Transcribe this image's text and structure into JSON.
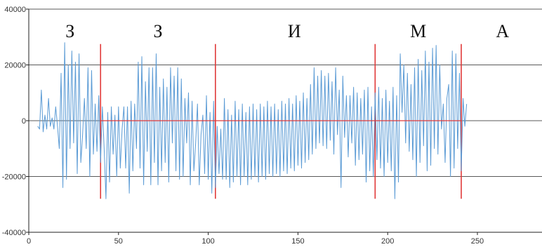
{
  "chart_data": {
    "type": "line",
    "xlim": [
      0,
      286
    ],
    "ylim": [
      -40000,
      40000
    ],
    "xticks": [
      0,
      50,
      100,
      150,
      200,
      250
    ],
    "yticks": [
      -40000,
      -20000,
      0,
      20000,
      40000
    ],
    "xtick_labels": [
      "0",
      "50",
      "100",
      "150",
      "200",
      "250"
    ],
    "ytick_labels": [
      "-40000",
      "-20000",
      "0",
      "20000",
      "40000"
    ],
    "grid": "horizontal",
    "series": [
      {
        "color": "#5b9bd5",
        "x_start": 5,
        "values": [
          -2000,
          -3000,
          11000,
          -4000,
          2000,
          -3000,
          8000,
          -2000,
          1000,
          -3000,
          5000,
          -2000,
          -10000,
          17000,
          -24000,
          28000,
          -21000,
          20000,
          -10000,
          25000,
          -8000,
          21000,
          -19000,
          24000,
          -15000,
          -5000,
          8000,
          -10000,
          19000,
          -20000,
          18000,
          -12000,
          6000,
          -11000,
          9000,
          -15000,
          5000,
          -10000,
          -28000,
          3000,
          -22000,
          5000,
          -12000,
          2000,
          -20000,
          5000,
          -17000,
          -3000,
          5000,
          -17000,
          5000,
          -26000,
          7000,
          -18000,
          6000,
          -10000,
          21000,
          -17000,
          23000,
          -23000,
          14000,
          -11000,
          19000,
          -23000,
          19000,
          -15000,
          24000,
          -23000,
          12000,
          -18000,
          15000,
          -15000,
          12000,
          -22000,
          19000,
          -8000,
          16000,
          -18000,
          19000,
          -21000,
          15000,
          -20000,
          8000,
          -8000,
          10000,
          -23000,
          7000,
          -18000,
          -8000,
          6000,
          -23000,
          -5000,
          2000,
          -19000,
          9000,
          -21000,
          3000,
          -26000,
          7000,
          -24000,
          -2000,
          -19000,
          -3000,
          -21000,
          8000,
          -21000,
          4000,
          -24000,
          2000,
          -22000,
          7000,
          -20000,
          4000,
          -23000,
          6000,
          -20000,
          3000,
          -23000,
          5000,
          -21000,
          6000,
          -20000,
          4000,
          -22000,
          6000,
          -20000,
          5000,
          -21000,
          7000,
          -19000,
          5000,
          -20000,
          6000,
          -19000,
          4000,
          -20000,
          7000,
          -18000,
          6000,
          -19000,
          8000,
          -17000,
          6000,
          -18000,
          9000,
          -16000,
          7000,
          -17000,
          10000,
          -15000,
          8000,
          -14000,
          13000,
          -12000,
          19000,
          -10000,
          16000,
          -8000,
          18000,
          -9000,
          16000,
          -10000,
          17000,
          -7000,
          14000,
          -12000,
          19000,
          -5000,
          11000,
          -24000,
          16000,
          -6000,
          9000,
          -13000,
          9000,
          -8000,
          12000,
          -16000,
          10000,
          -14000,
          8000,
          -12000,
          11000,
          -22000,
          12000,
          -18000,
          5000,
          -20000,
          10000,
          -14000,
          12000,
          -17000,
          8000,
          -20000,
          11000,
          -15000,
          7000,
          -18000,
          12000,
          -28000,
          9000,
          -22000,
          24000,
          3000,
          20000,
          -8000,
          17000,
          -11000,
          13000,
          -14000,
          19000,
          -20000,
          22000,
          -15000,
          18000,
          -9000,
          25000,
          -18000,
          21000,
          -16000,
          26000,
          -10000,
          27000,
          -12000,
          20000,
          -3000,
          6000,
          -15000,
          8000,
          13000,
          -20000,
          25000,
          -17000,
          24000,
          -10000,
          17000,
          -18000,
          8000,
          -2000,
          6000
        ]
      }
    ],
    "markers": [
      {
        "x": 40,
        "color": "#e03a3a"
      },
      {
        "x": 104,
        "color": "#e03a3a"
      },
      {
        "x": 193,
        "color": "#e03a3a"
      },
      {
        "x": 241,
        "color": "#e03a3a"
      }
    ],
    "segment_labels": [
      {
        "text": "З",
        "x": 23
      },
      {
        "text": "З",
        "x": 72
      },
      {
        "text": "И",
        "x": 148
      },
      {
        "text": "М",
        "x": 217
      },
      {
        "text": "А",
        "x": 264
      }
    ],
    "segment_label_y": 32500
  }
}
